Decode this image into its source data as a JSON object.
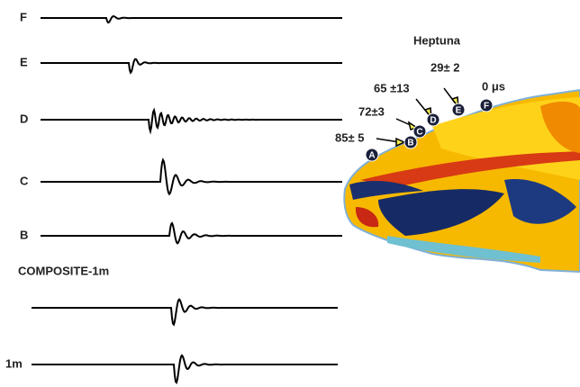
{
  "traces": [
    {
      "label": "F"
    },
    {
      "label": "E"
    },
    {
      "label": "D"
    },
    {
      "label": "C"
    },
    {
      "label": "B"
    }
  ],
  "composite": {
    "title": "COMPOSITE-1m",
    "label": "1m"
  },
  "figure": {
    "title": "Heptuna",
    "annotations": [
      "29± 2",
      "0 μs",
      "65 ±13",
      "72±3",
      "85± 5"
    ],
    "nodes": [
      "A",
      "B",
      "C",
      "D",
      "E",
      "F"
    ]
  }
}
